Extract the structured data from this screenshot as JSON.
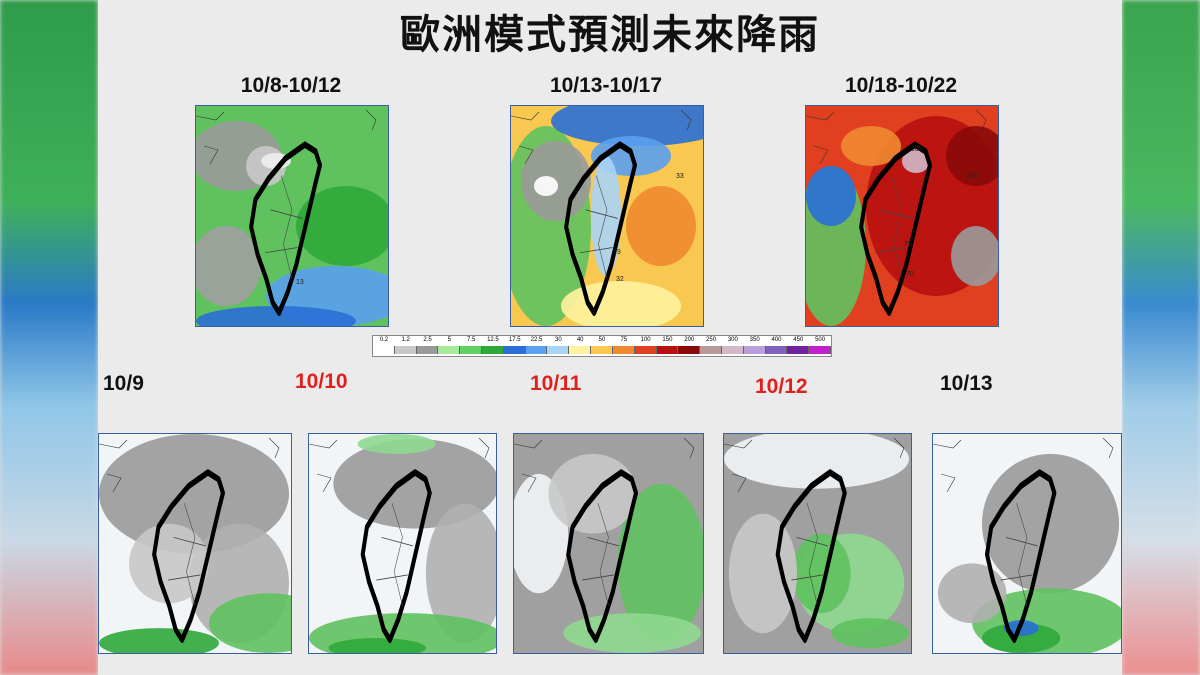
{
  "title": "歐洲模式預測未來降雨",
  "top_maps": [
    {
      "label": "10/8-10/12",
      "annotations": [
        "13"
      ]
    },
    {
      "label": "10/13-10/17",
      "annotations": [
        "33",
        "29",
        "32"
      ]
    },
    {
      "label": "10/18-10/22",
      "annotations": [
        "105",
        "118",
        "75",
        "70"
      ]
    }
  ],
  "colorbar": {
    "labels": [
      "0.2",
      "1.2",
      "2.5",
      "5",
      "7.5",
      "12.5",
      "17.5",
      "22.5",
      "30",
      "40",
      "50",
      "75",
      "100",
      "150",
      "200",
      "250",
      "300",
      "350",
      "400",
      "450",
      "500"
    ],
    "colors": [
      "#ffffff",
      "#c8c8c8",
      "#9a9a9a",
      "#a8e89a",
      "#5fd25f",
      "#2fa83a",
      "#2a6fd6",
      "#5aa0f0",
      "#a8d4f5",
      "#fff2a0",
      "#f8c850",
      "#f08a30",
      "#e04020",
      "#b81010",
      "#8a0a0a",
      "#b89a9a",
      "#d2b8c8",
      "#b8a0d8",
      "#8060c0",
      "#7020a0",
      "#c020d0"
    ]
  },
  "bottom_maps": [
    {
      "label": "10/9",
      "color": "#111111"
    },
    {
      "label": "10/10",
      "color": "#e0201b"
    },
    {
      "label": "10/11",
      "color": "#e0201b"
    },
    {
      "label": "10/12",
      "color": "#e0201b"
    },
    {
      "label": "10/13",
      "color": "#111111"
    }
  ]
}
